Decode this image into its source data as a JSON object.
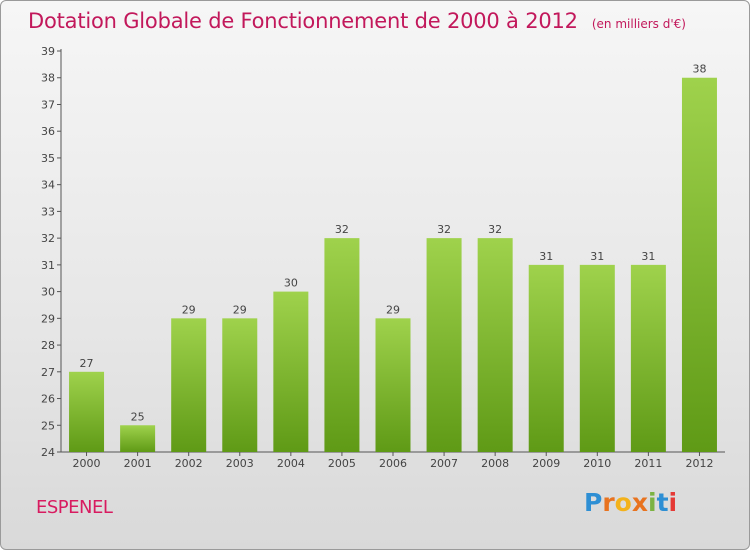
{
  "header": {
    "title": "Dotation Globale de Fonctionnement de 2000 à 2012",
    "unit_note": "(en milliers d'€)"
  },
  "commune": "ESPENEL",
  "logo": {
    "letters": [
      "P",
      "r",
      "o",
      "x",
      "i",
      "t",
      "i"
    ],
    "colors": [
      "#2e8fd4",
      "#e8731f",
      "#f3b21b",
      "#e8731f",
      "#7cb342",
      "#2e8fd4",
      "#e53935"
    ]
  },
  "chart_data": {
    "type": "bar",
    "title": "Dotation Globale de Fonctionnement de 2000 à 2012",
    "subtitle": "(en milliers d'€)",
    "xlabel": "",
    "ylabel": "",
    "categories": [
      "2000",
      "2001",
      "2002",
      "2003",
      "2004",
      "2005",
      "2006",
      "2007",
      "2008",
      "2009",
      "2010",
      "2011",
      "2012"
    ],
    "values": [
      27,
      25,
      29,
      29,
      30,
      32,
      29,
      32,
      32,
      31,
      31,
      31,
      38
    ],
    "ylim": [
      24,
      39
    ],
    "yticks": [
      24,
      25,
      26,
      27,
      28,
      29,
      30,
      31,
      32,
      33,
      34,
      35,
      36,
      37,
      38,
      39
    ],
    "grid": false,
    "legend": "none",
    "bar_color_top": "#9fd24c",
    "bar_color_bottom": "#5f9a16"
  }
}
